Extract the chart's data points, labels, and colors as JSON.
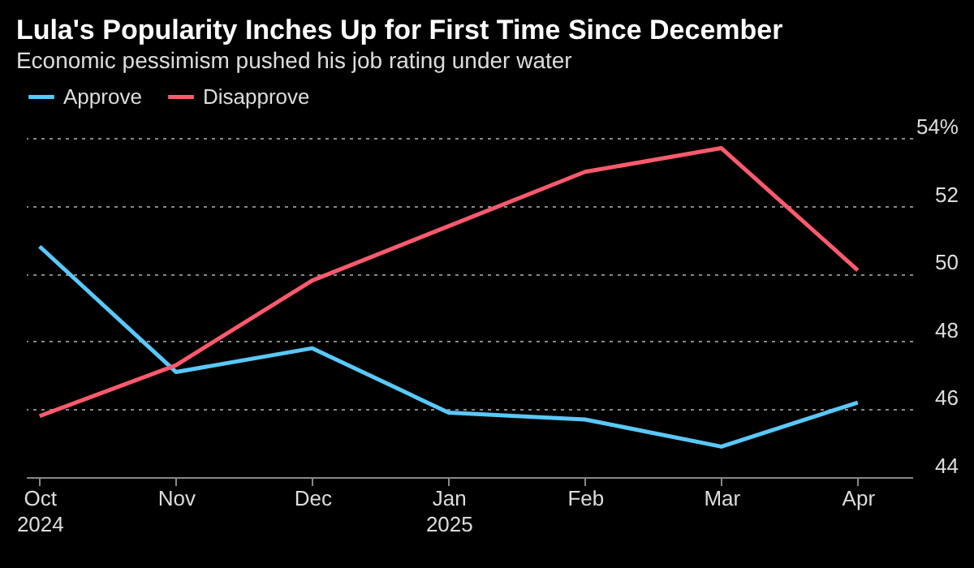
{
  "chart_data": {
    "type": "line",
    "title": "Lula's Popularity Inches Up for First Time Since December",
    "subtitle": "Economic pessimism pushed his job rating under water",
    "categories": [
      "Oct 2024",
      "Nov",
      "Dec",
      "Jan 2025",
      "Feb",
      "Mar",
      "Apr"
    ],
    "series": [
      {
        "name": "Approve",
        "color": "#5ac8fa",
        "values": [
          50.8,
          47.1,
          47.8,
          45.9,
          45.7,
          44.9,
          46.2
        ]
      },
      {
        "name": "Disapprove",
        "color": "#ff5a6e",
        "values": [
          45.8,
          47.3,
          49.8,
          51.4,
          53.0,
          53.7,
          50.1
        ]
      }
    ],
    "ylim": [
      44,
      54
    ],
    "yticks": [
      44,
      46,
      48,
      50,
      52,
      {
        "value": 54,
        "label": "54%"
      }
    ],
    "grid": "y",
    "legend": "top left",
    "marker": "none",
    "line_style": "solid"
  }
}
